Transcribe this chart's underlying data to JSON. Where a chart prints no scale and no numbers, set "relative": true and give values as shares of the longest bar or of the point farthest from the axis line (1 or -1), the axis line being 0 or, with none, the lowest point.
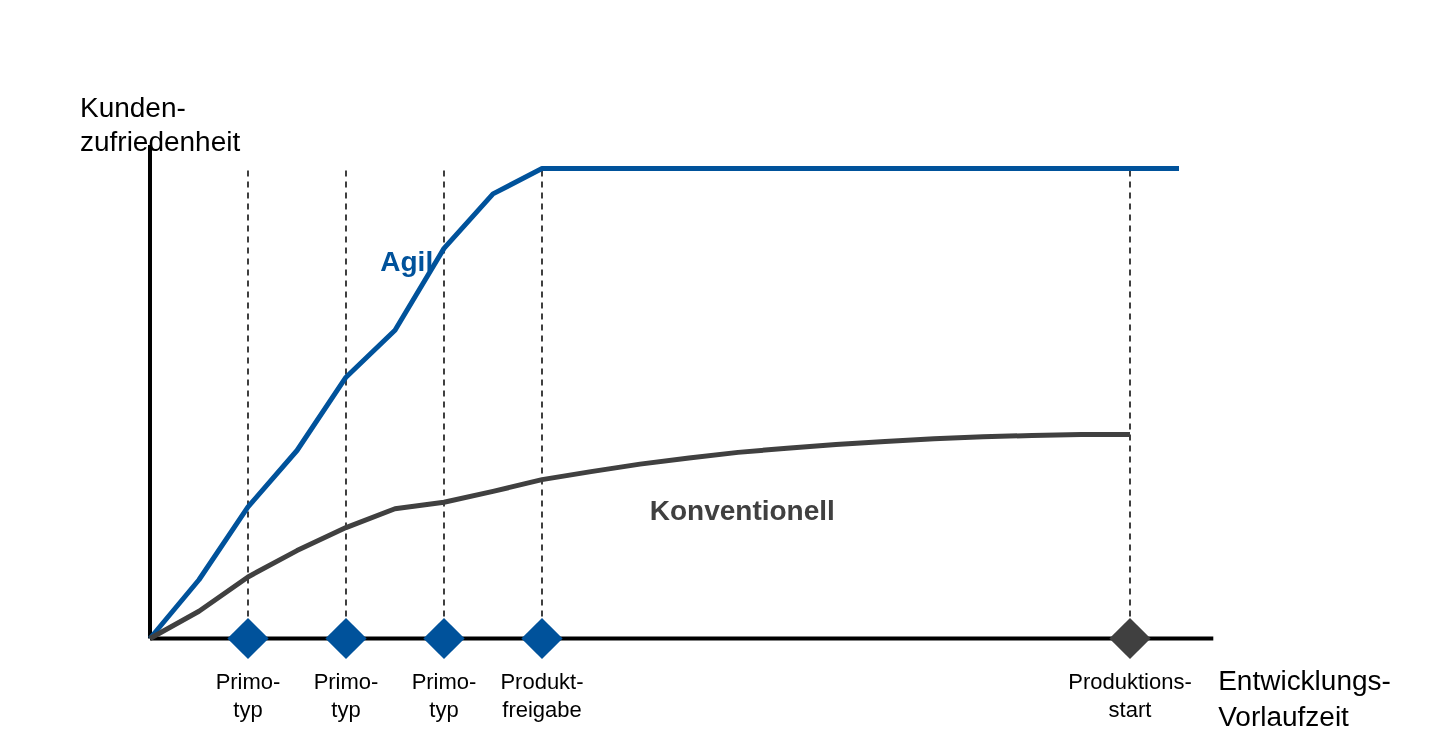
{
  "chart_data": {
    "type": "line",
    "relative": true,
    "xlabel": "Entwicklungs-\nVorlaufzeit",
    "ylabel": "Kunden-\nzufriedenheit",
    "categories": [
      null,
      null,
      "Primo-\ntyp",
      null,
      "Primo-\ntyp",
      null,
      "Primo-\ntyp",
      null,
      "Produkt-\nfreigabe",
      null,
      null,
      null,
      null,
      null,
      null,
      null,
      null,
      null,
      null,
      null,
      "Produktions-\nstart",
      null
    ],
    "series": [
      {
        "name": "Agil",
        "color": "#00529b",
        "values": [
          0,
          0.125,
          0.28,
          0.4,
          0.556,
          0.656,
          0.83,
          0.946,
          1,
          1,
          1,
          1,
          1,
          1,
          1,
          1,
          1,
          1,
          1,
          1,
          1,
          1
        ]
      },
      {
        "name": "Konventionell",
        "color": "#404040",
        "values": [
          0,
          0.058,
          0.131,
          0.187,
          0.236,
          0.276,
          0.29,
          0.313,
          0.338,
          0.355,
          0.371,
          0.384,
          0.396,
          0.405,
          0.413,
          0.419,
          0.425,
          0.429,
          0.432,
          0.434,
          0.434,
          null
        ]
      },
      {
        "type": "scatter",
        "marker": "diamond",
        "values": [
          null,
          null,
          0,
          null,
          0,
          null,
          0,
          null,
          0,
          null,
          null,
          null,
          null,
          null,
          null,
          null,
          null,
          null,
          null,
          null,
          0,
          null
        ],
        "colors": [
          null,
          null,
          "#00529b",
          null,
          "#00529b",
          null,
          "#00529b",
          null,
          "#00529b",
          null,
          null,
          null,
          null,
          null,
          null,
          null,
          null,
          null,
          null,
          null,
          "#404040",
          null
        ]
      }
    ],
    "line_style": "solid",
    "grid": "x"
  }
}
